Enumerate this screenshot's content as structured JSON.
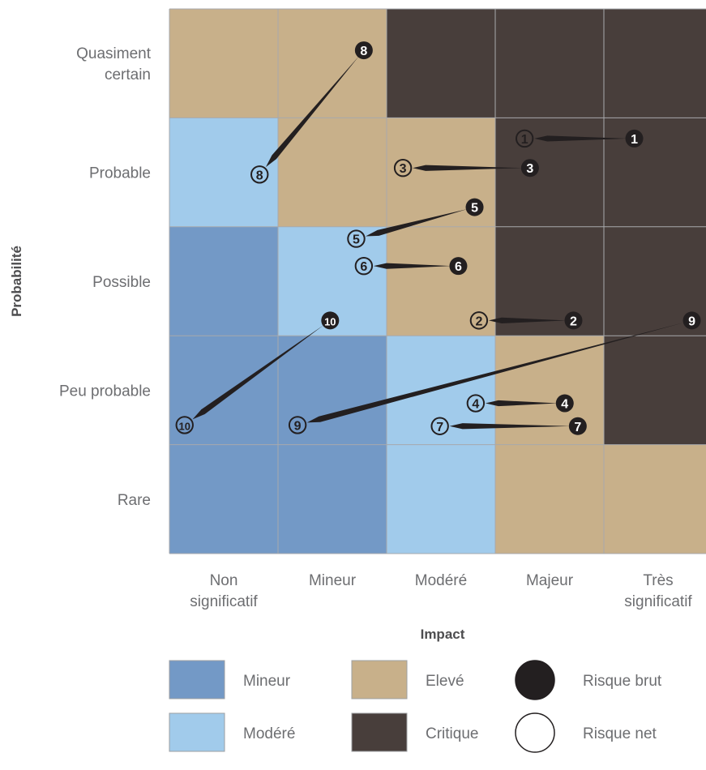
{
  "chart_data": {
    "type": "heatmap",
    "xlabel": "Impact",
    "ylabel": "Probabilité",
    "columns": [
      [
        "Non",
        "significatif"
      ],
      [
        "Mineur"
      ],
      [
        "Modéré"
      ],
      [
        "Majeur"
      ],
      [
        "Très",
        "significatif"
      ]
    ],
    "rows": [
      [
        "Quasiment",
        "certain"
      ],
      [
        "Probable"
      ],
      [
        "Possible"
      ],
      [
        "Peu probable"
      ],
      [
        "Rare"
      ]
    ],
    "levels": {
      "mineur": {
        "label": "Mineur",
        "color": "#7399c6"
      },
      "modere": {
        "label": "Modéré",
        "color": "#a1cbeb"
      },
      "eleve": {
        "label": "Elevé",
        "color": "#c8b08a"
      },
      "critique": {
        "label": "Critique",
        "color": "#483e3b"
      }
    },
    "cells": [
      [
        "eleve",
        "eleve",
        "critique",
        "critique",
        "critique"
      ],
      [
        "modere",
        "eleve",
        "eleve",
        "critique",
        "critique"
      ],
      [
        "mineur",
        "modere",
        "eleve",
        "critique",
        "critique"
      ],
      [
        "mineur",
        "mineur",
        "modere",
        "eleve",
        "critique"
      ],
      [
        "mineur",
        "mineur",
        "modere",
        "eleve",
        "eleve"
      ]
    ],
    "risks": [
      {
        "id": "1",
        "brut": [
          4.28,
          1.19
        ],
        "net": [
          3.27,
          1.19
        ]
      },
      {
        "id": "2",
        "brut": [
          3.72,
          2.86
        ],
        "net": [
          2.85,
          2.86
        ]
      },
      {
        "id": "3",
        "brut": [
          3.32,
          1.46
        ],
        "net": [
          2.15,
          1.46
        ]
      },
      {
        "id": "4",
        "brut": [
          3.64,
          3.62
        ],
        "net": [
          2.82,
          3.62
        ]
      },
      {
        "id": "5",
        "brut": [
          2.81,
          1.82
        ],
        "net": [
          1.72,
          2.11
        ]
      },
      {
        "id": "6",
        "brut": [
          2.66,
          2.36
        ],
        "net": [
          1.79,
          2.36
        ]
      },
      {
        "id": "7",
        "brut": [
          3.76,
          3.83
        ],
        "net": [
          2.49,
          3.83
        ]
      },
      {
        "id": "8",
        "brut": [
          1.79,
          0.38
        ],
        "net": [
          0.83,
          1.52
        ]
      },
      {
        "id": "9",
        "brut": [
          4.81,
          2.86
        ],
        "net": [
          1.18,
          3.82
        ]
      },
      {
        "id": "10",
        "brut": [
          1.48,
          2.86
        ],
        "net": [
          0.14,
          3.82
        ]
      }
    ],
    "legend": {
      "brut_label": "Risque brut",
      "net_label": "Risque net",
      "order": [
        "mineur",
        "eleve",
        "brut",
        "modere",
        "critique",
        "net"
      ]
    }
  }
}
